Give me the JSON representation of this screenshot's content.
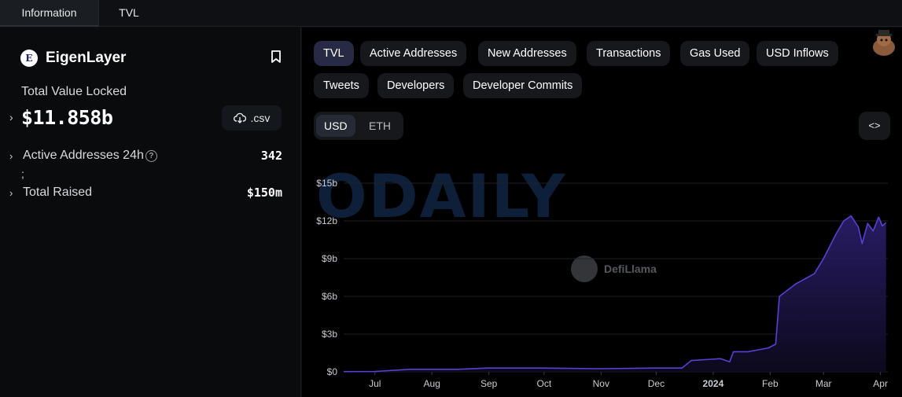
{
  "top_tabs": [
    {
      "label": "Information",
      "active": true
    },
    {
      "label": "TVL",
      "active": false
    }
  ],
  "protocol": {
    "logo_letter": "E",
    "name": "EigenLayer"
  },
  "tvl": {
    "label": "Total Value Locked",
    "value": "$11.858b",
    "csv_label": ".csv"
  },
  "stats": [
    {
      "label": "Active Addresses 24h",
      "value": "342",
      "has_help": true
    },
    {
      "label": "Total Raised",
      "value": "$150m",
      "has_help": false
    }
  ],
  "stray_text": ";",
  "metric_tabs_row1": [
    "TVL",
    "Active Addresses",
    "New Addresses",
    "Transactions",
    "Gas Used",
    "USD Inflows"
  ],
  "metric_tabs_row2": [
    "Tweets",
    "Developers",
    "Developer Commits"
  ],
  "active_metric": "TVL",
  "currency": {
    "options": [
      "USD",
      "ETH"
    ],
    "selected": "USD"
  },
  "embed_icon": "code-icon",
  "watermark_text": "ODAILY",
  "defillama_label": "DefiLlama",
  "colors": {
    "line": "#5b3fd6",
    "fill_top": "#2b1f6e",
    "fill_bottom": "#0d0a1f",
    "active_pill": "#272a45"
  },
  "chart_data": {
    "type": "area",
    "title": "",
    "xlabel": "",
    "ylabel": "",
    "yticks": [
      "$0",
      "$3b",
      "$6b",
      "$9b",
      "$12b",
      "$15b"
    ],
    "ylim": [
      0,
      15
    ],
    "xticks": [
      "Jul",
      "Aug",
      "Sep",
      "Oct",
      "Nov",
      "Dec",
      "2024",
      "Feb",
      "Mar",
      "Apr"
    ],
    "series": [
      {
        "values_unit": "billion USD",
        "points": [
          [
            "2023-06-14",
            0.02
          ],
          [
            "2023-07-01",
            0.03
          ],
          [
            "2023-07-20",
            0.2
          ],
          [
            "2023-08-15",
            0.2
          ],
          [
            "2023-08-31",
            0.3
          ],
          [
            "2023-09-30",
            0.3
          ],
          [
            "2023-10-31",
            0.25
          ],
          [
            "2023-11-30",
            0.3
          ],
          [
            "2023-12-15",
            0.3
          ],
          [
            "2023-12-20",
            0.9
          ],
          [
            "2023-12-31",
            1.0
          ],
          [
            "2024-01-05",
            1.05
          ],
          [
            "2024-01-10",
            0.8
          ],
          [
            "2024-01-12",
            1.6
          ],
          [
            "2024-01-20",
            1.6
          ],
          [
            "2024-01-31",
            1.9
          ],
          [
            "2024-02-04",
            2.2
          ],
          [
            "2024-02-06",
            6.0
          ],
          [
            "2024-02-15",
            7.0
          ],
          [
            "2024-02-25",
            7.8
          ],
          [
            "2024-03-01",
            9.0
          ],
          [
            "2024-03-08",
            11.0
          ],
          [
            "2024-03-12",
            12.0
          ],
          [
            "2024-03-16",
            12.4
          ],
          [
            "2024-03-20",
            11.5
          ],
          [
            "2024-03-22",
            10.2
          ],
          [
            "2024-03-25",
            11.8
          ],
          [
            "2024-03-28",
            11.2
          ],
          [
            "2024-03-31",
            12.3
          ],
          [
            "2024-04-02",
            11.6
          ],
          [
            "2024-04-04",
            11.86
          ]
        ]
      }
    ]
  }
}
